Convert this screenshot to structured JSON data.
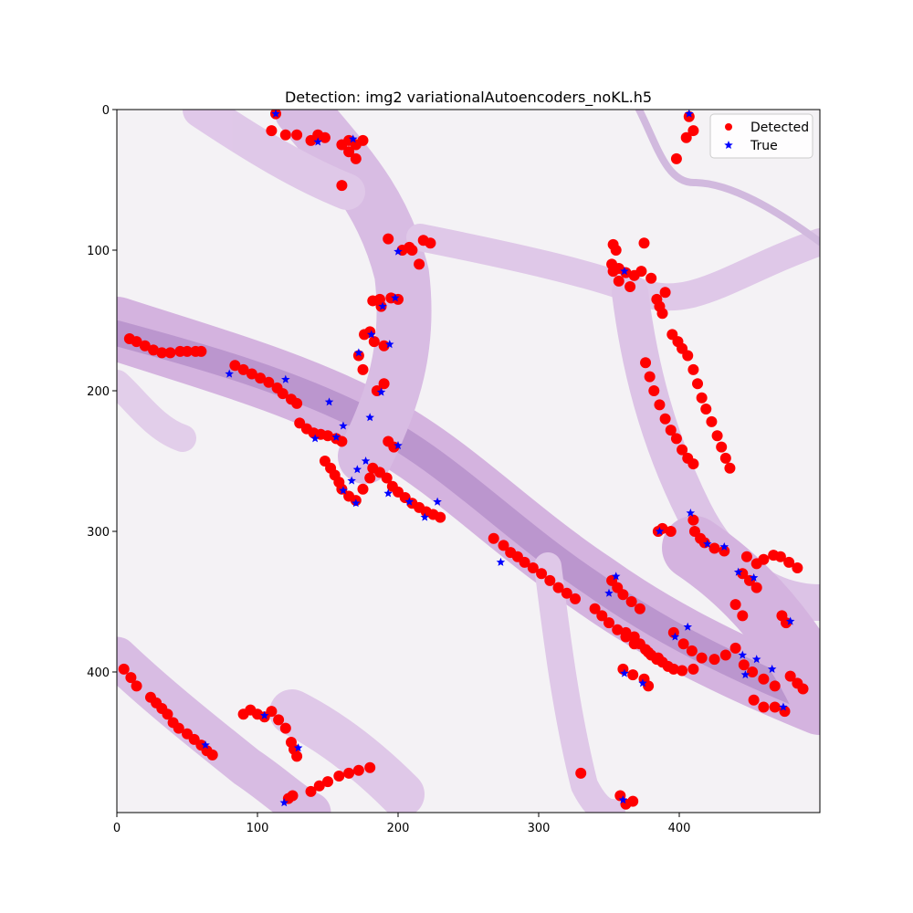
{
  "chart_data": {
    "type": "scatter",
    "title": "Detection: img2 variationalAutoencoders_noKL.h5",
    "xlabel": "",
    "ylabel": "",
    "xlim": [
      0,
      500
    ],
    "ylim": [
      500,
      0
    ],
    "x_ticks": [
      0,
      100,
      200,
      300,
      400
    ],
    "y_ticks": [
      0,
      100,
      200,
      300,
      400
    ],
    "grid": false,
    "legend_position": "top-right",
    "background": "histology tissue image (H&E stained, pink-purple tissue strands around white adipocyte spaces)",
    "colors": {
      "detected": "#ff0000",
      "true": "#0000ff",
      "tissue": "#c9a6d6",
      "tissue_dark": "#8e5fa6"
    },
    "series": [
      {
        "name": "Detected",
        "marker": "circle",
        "color": "#ff0000",
        "points": [
          [
            9,
            163
          ],
          [
            14,
            165
          ],
          [
            20,
            168
          ],
          [
            26,
            171
          ],
          [
            32,
            173
          ],
          [
            38,
            173
          ],
          [
            45,
            172
          ],
          [
            50,
            172
          ],
          [
            56,
            172
          ],
          [
            60,
            172
          ],
          [
            84,
            182
          ],
          [
            90,
            185
          ],
          [
            96,
            188
          ],
          [
            102,
            191
          ],
          [
            108,
            194
          ],
          [
            114,
            198
          ],
          [
            118,
            202
          ],
          [
            124,
            206
          ],
          [
            128,
            209
          ],
          [
            130,
            223
          ],
          [
            135,
            227
          ],
          [
            140,
            230
          ],
          [
            145,
            231
          ],
          [
            150,
            232
          ],
          [
            156,
            234
          ],
          [
            160,
            236
          ],
          [
            148,
            250
          ],
          [
            152,
            255
          ],
          [
            155,
            260
          ],
          [
            158,
            265
          ],
          [
            160,
            270
          ],
          [
            165,
            275
          ],
          [
            170,
            278
          ],
          [
            175,
            270
          ],
          [
            180,
            262
          ],
          [
            182,
            255
          ],
          [
            187,
            258
          ],
          [
            192,
            262
          ],
          [
            196,
            268
          ],
          [
            200,
            272
          ],
          [
            205,
            276
          ],
          [
            210,
            280
          ],
          [
            215,
            283
          ],
          [
            220,
            286
          ],
          [
            225,
            288
          ],
          [
            230,
            290
          ],
          [
            193,
            236
          ],
          [
            197,
            240
          ],
          [
            185,
            200
          ],
          [
            190,
            195
          ],
          [
            175,
            185
          ],
          [
            172,
            175
          ],
          [
            176,
            160
          ],
          [
            180,
            158
          ],
          [
            183,
            165
          ],
          [
            190,
            168
          ],
          [
            182,
            136
          ],
          [
            187,
            135
          ],
          [
            195,
            134
          ],
          [
            200,
            135
          ],
          [
            188,
            140
          ],
          [
            203,
            100
          ],
          [
            208,
            98
          ],
          [
            210,
            100
          ],
          [
            193,
            92
          ],
          [
            218,
            93
          ],
          [
            223,
            95
          ],
          [
            215,
            110
          ],
          [
            138,
            22
          ],
          [
            143,
            18
          ],
          [
            148,
            20
          ],
          [
            160,
            25
          ],
          [
            165,
            22
          ],
          [
            170,
            25
          ],
          [
            175,
            22
          ],
          [
            165,
            30
          ],
          [
            170,
            35
          ],
          [
            110,
            15
          ],
          [
            120,
            18
          ],
          [
            128,
            18
          ],
          [
            113,
            3
          ],
          [
            160,
            54
          ],
          [
            268,
            305
          ],
          [
            275,
            310
          ],
          [
            280,
            315
          ],
          [
            285,
            318
          ],
          [
            290,
            322
          ],
          [
            296,
            326
          ],
          [
            302,
            330
          ],
          [
            308,
            335
          ],
          [
            314,
            340
          ],
          [
            320,
            344
          ],
          [
            326,
            348
          ],
          [
            340,
            355
          ],
          [
            345,
            360
          ],
          [
            350,
            365
          ],
          [
            356,
            370
          ],
          [
            362,
            372
          ],
          [
            368,
            375
          ],
          [
            372,
            380
          ],
          [
            376,
            384
          ],
          [
            380,
            388
          ],
          [
            384,
            391
          ],
          [
            388,
            393
          ],
          [
            392,
            396
          ],
          [
            396,
            398
          ],
          [
            402,
            399
          ],
          [
            410,
            398
          ],
          [
            352,
            335
          ],
          [
            356,
            340
          ],
          [
            360,
            345
          ],
          [
            366,
            350
          ],
          [
            372,
            355
          ],
          [
            362,
            375
          ],
          [
            368,
            380
          ],
          [
            378,
            386
          ],
          [
            385,
            390
          ],
          [
            396,
            372
          ],
          [
            403,
            380
          ],
          [
            409,
            385
          ],
          [
            416,
            390
          ],
          [
            425,
            391
          ],
          [
            433,
            388
          ],
          [
            440,
            383
          ],
          [
            446,
            395
          ],
          [
            452,
            400
          ],
          [
            460,
            405
          ],
          [
            468,
            410
          ],
          [
            440,
            352
          ],
          [
            445,
            360
          ],
          [
            448,
            318
          ],
          [
            455,
            323
          ],
          [
            460,
            320
          ],
          [
            467,
            317
          ],
          [
            472,
            318
          ],
          [
            478,
            322
          ],
          [
            484,
            326
          ],
          [
            473,
            360
          ],
          [
            476,
            365
          ],
          [
            445,
            330
          ],
          [
            450,
            335
          ],
          [
            455,
            340
          ],
          [
            411,
            300
          ],
          [
            415,
            305
          ],
          [
            418,
            308
          ],
          [
            425,
            312
          ],
          [
            432,
            314
          ],
          [
            410,
            292
          ],
          [
            385,
            300
          ],
          [
            388,
            298
          ],
          [
            394,
            300
          ],
          [
            360,
            398
          ],
          [
            367,
            402
          ],
          [
            375,
            405
          ],
          [
            378,
            410
          ],
          [
            453,
            420
          ],
          [
            460,
            425
          ],
          [
            468,
            425
          ],
          [
            475,
            428
          ],
          [
            479,
            403
          ],
          [
            484,
            408
          ],
          [
            488,
            412
          ],
          [
            352,
            110
          ],
          [
            357,
            113
          ],
          [
            362,
            116
          ],
          [
            368,
            118
          ],
          [
            373,
            115
          ],
          [
            380,
            120
          ],
          [
            353,
            115
          ],
          [
            357,
            122
          ],
          [
            365,
            126
          ],
          [
            384,
            135
          ],
          [
            386,
            140
          ],
          [
            388,
            145
          ],
          [
            390,
            130
          ],
          [
            353,
            96
          ],
          [
            355,
            100
          ],
          [
            375,
            95
          ],
          [
            407,
            5
          ],
          [
            410,
            15
          ],
          [
            405,
            20
          ],
          [
            398,
            35
          ],
          [
            376,
            180
          ],
          [
            379,
            190
          ],
          [
            382,
            200
          ],
          [
            386,
            210
          ],
          [
            390,
            220
          ],
          [
            394,
            228
          ],
          [
            398,
            234
          ],
          [
            402,
            242
          ],
          [
            406,
            248
          ],
          [
            410,
            252
          ],
          [
            395,
            160
          ],
          [
            399,
            165
          ],
          [
            402,
            170
          ],
          [
            406,
            175
          ],
          [
            410,
            185
          ],
          [
            413,
            195
          ],
          [
            416,
            205
          ],
          [
            419,
            213
          ],
          [
            423,
            222
          ],
          [
            427,
            232
          ],
          [
            430,
            240
          ],
          [
            433,
            248
          ],
          [
            436,
            255
          ],
          [
            5,
            398
          ],
          [
            10,
            404
          ],
          [
            14,
            410
          ],
          [
            24,
            418
          ],
          [
            28,
            422
          ],
          [
            32,
            426
          ],
          [
            36,
            430
          ],
          [
            40,
            436
          ],
          [
            44,
            440
          ],
          [
            50,
            444
          ],
          [
            55,
            448
          ],
          [
            60,
            452
          ],
          [
            64,
            456
          ],
          [
            68,
            459
          ],
          [
            90,
            430
          ],
          [
            95,
            427
          ],
          [
            100,
            430
          ],
          [
            105,
            432
          ],
          [
            110,
            428
          ],
          [
            115,
            434
          ],
          [
            120,
            440
          ],
          [
            124,
            450
          ],
          [
            126,
            455
          ],
          [
            128,
            460
          ],
          [
            125,
            488
          ],
          [
            122,
            490
          ],
          [
            138,
            485
          ],
          [
            144,
            481
          ],
          [
            150,
            478
          ],
          [
            158,
            474
          ],
          [
            165,
            472
          ],
          [
            172,
            470
          ],
          [
            180,
            468
          ],
          [
            330,
            472
          ],
          [
            358,
            488
          ],
          [
            362,
            494
          ],
          [
            367,
            492
          ]
        ]
      },
      {
        "name": "True",
        "marker": "star",
        "color": "#0000ff",
        "points": [
          [
            113,
            3
          ],
          [
            143,
            23
          ],
          [
            168,
            21
          ],
          [
            200,
            101
          ],
          [
            189,
            140
          ],
          [
            198,
            134
          ],
          [
            172,
            173
          ],
          [
            181,
            160
          ],
          [
            194,
            167
          ],
          [
            80,
            188
          ],
          [
            120,
            192
          ],
          [
            151,
            208
          ],
          [
            188,
            201
          ],
          [
            180,
            219
          ],
          [
            141,
            234
          ],
          [
            156,
            233
          ],
          [
            161,
            225
          ],
          [
            200,
            239
          ],
          [
            177,
            250
          ],
          [
            171,
            256
          ],
          [
            167,
            264
          ],
          [
            161,
            271
          ],
          [
            170,
            280
          ],
          [
            193,
            273
          ],
          [
            208,
            279
          ],
          [
            219,
            290
          ],
          [
            228,
            279
          ],
          [
            273,
            322
          ],
          [
            361,
            115
          ],
          [
            355,
            332
          ],
          [
            350,
            344
          ],
          [
            397,
            375
          ],
          [
            406,
            368
          ],
          [
            420,
            309
          ],
          [
            432,
            311
          ],
          [
            453,
            333
          ],
          [
            445,
            388
          ],
          [
            455,
            391
          ],
          [
            447,
            402
          ],
          [
            466,
            398
          ],
          [
            479,
            364
          ],
          [
            474,
            425
          ],
          [
            361,
            401
          ],
          [
            374,
            408
          ],
          [
            442,
            329
          ],
          [
            408,
            287
          ],
          [
            386,
            300
          ],
          [
            105,
            431
          ],
          [
            129,
            454
          ],
          [
            63,
            452
          ],
          [
            119,
            493
          ],
          [
            360,
            491
          ],
          [
            407,
            3
          ]
        ]
      }
    ]
  },
  "legend": {
    "detected_label": "Detected",
    "true_label": "True"
  }
}
